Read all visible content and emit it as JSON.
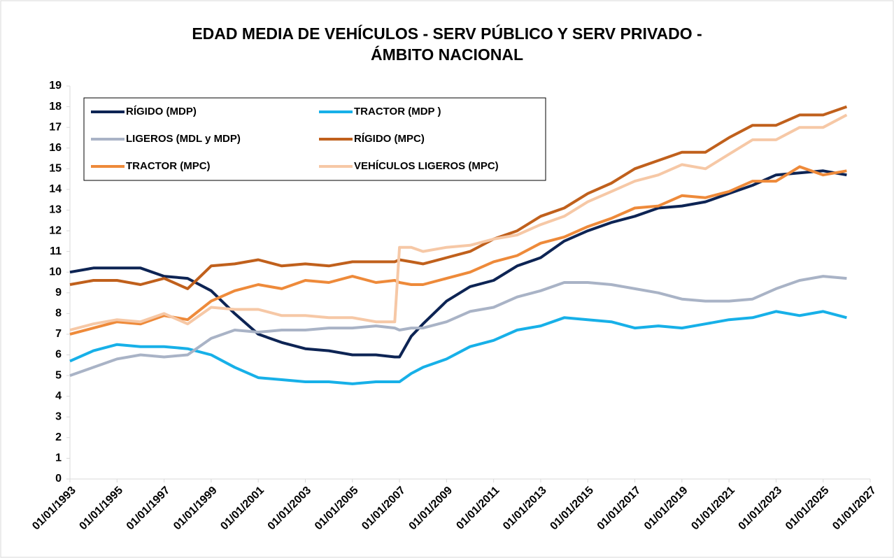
{
  "chart_data": {
    "type": "line",
    "title": [
      "EDAD MEDIA DE VEHÍCULOS - SERV PÚBLICO Y SERV PRIVADO -",
      "ÁMBITO NACIONAL"
    ],
    "x": [
      1993,
      1994,
      1995,
      1996,
      1997,
      1998,
      1999,
      2000,
      2001,
      2002,
      2003,
      2004,
      2005,
      2006,
      2006.8,
      2007,
      2007.5,
      2008,
      2009,
      2010,
      2011,
      2012,
      2013,
      2014,
      2015,
      2016,
      2017,
      2018,
      2019,
      2020,
      2021,
      2022,
      2023,
      2024,
      2025,
      2026
    ],
    "xlim": [
      1993,
      2027
    ],
    "xticks": [
      {
        "value": 1993,
        "label": "01/01/1993"
      },
      {
        "value": 1995,
        "label": "01/01/1995"
      },
      {
        "value": 1997,
        "label": "01/01/1997"
      },
      {
        "value": 1999,
        "label": "01/01/1999"
      },
      {
        "value": 2001,
        "label": "01/01/2001"
      },
      {
        "value": 2003,
        "label": "01/01/2003"
      },
      {
        "value": 2005,
        "label": "01/01/2005"
      },
      {
        "value": 2007,
        "label": "01/01/2007"
      },
      {
        "value": 2009,
        "label": "01/01/2009"
      },
      {
        "value": 2011,
        "label": "01/01/2011"
      },
      {
        "value": 2013,
        "label": "01/01/2013"
      },
      {
        "value": 2015,
        "label": "01/01/2015"
      },
      {
        "value": 2017,
        "label": "01/01/2017"
      },
      {
        "value": 2019,
        "label": "01/01/2019"
      },
      {
        "value": 2021,
        "label": "01/01/2021"
      },
      {
        "value": 2023,
        "label": "01/01/2023"
      },
      {
        "value": 2025,
        "label": "01/01/2025"
      },
      {
        "value": 2027,
        "label": "01/01/2027"
      }
    ],
    "ylim": [
      0,
      19
    ],
    "yticks": [
      0,
      1,
      2,
      3,
      4,
      5,
      6,
      7,
      8,
      9,
      10,
      11,
      12,
      13,
      14,
      15,
      16,
      17,
      18,
      19
    ],
    "grid": false,
    "legend": "top-left",
    "series": [
      {
        "name": "RÍGIDO (MDP)",
        "color": "#0d2454",
        "values": [
          10.0,
          10.2,
          10.2,
          10.2,
          9.8,
          9.7,
          9.1,
          8.0,
          7.0,
          6.6,
          6.3,
          6.2,
          6.0,
          6.0,
          5.9,
          5.9,
          6.9,
          7.5,
          8.6,
          9.3,
          9.6,
          10.3,
          10.7,
          11.5,
          12.0,
          12.4,
          12.7,
          13.1,
          13.2,
          13.4,
          13.8,
          14.2,
          14.7,
          14.8,
          14.9,
          14.7
        ]
      },
      {
        "name": "TRACTOR (MDP )",
        "color": "#17b0e8",
        "values": [
          5.7,
          6.2,
          6.5,
          6.4,
          6.4,
          6.3,
          6.0,
          5.4,
          4.9,
          4.8,
          4.7,
          4.7,
          4.6,
          4.7,
          4.7,
          4.7,
          5.1,
          5.4,
          5.8,
          6.4,
          6.7,
          7.2,
          7.4,
          7.8,
          7.7,
          7.6,
          7.3,
          7.4,
          7.3,
          7.5,
          7.7,
          7.8,
          8.1,
          7.9,
          8.1,
          7.8
        ]
      },
      {
        "name": "LIGEROS (MDL y MDP)",
        "color": "#a9b3c6",
        "values": [
          5.0,
          5.4,
          5.8,
          6.0,
          5.9,
          6.0,
          6.8,
          7.2,
          7.1,
          7.2,
          7.2,
          7.3,
          7.3,
          7.4,
          7.3,
          7.2,
          7.3,
          7.3,
          7.6,
          8.1,
          8.3,
          8.8,
          9.1,
          9.5,
          9.5,
          9.4,
          9.2,
          9.0,
          8.7,
          8.6,
          8.6,
          8.7,
          9.2,
          9.6,
          9.8,
          9.7
        ]
      },
      {
        "name": "RÍGIDO (MPC)",
        "color": "#c0601c",
        "values": [
          9.4,
          9.6,
          9.6,
          9.4,
          9.7,
          9.2,
          10.3,
          10.4,
          10.6,
          10.3,
          10.4,
          10.3,
          10.5,
          10.5,
          10.5,
          10.6,
          10.5,
          10.4,
          10.7,
          11.0,
          11.6,
          12.0,
          12.7,
          13.1,
          13.8,
          14.3,
          15.0,
          15.4,
          15.8,
          15.8,
          16.5,
          17.1,
          17.1,
          17.6,
          17.6,
          18.0
        ]
      },
      {
        "name": "TRACTOR (MPC)",
        "color": "#ee8a3a",
        "values": [
          7.0,
          7.3,
          7.6,
          7.5,
          7.9,
          7.7,
          8.6,
          9.1,
          9.4,
          9.2,
          9.6,
          9.5,
          9.8,
          9.5,
          9.6,
          9.5,
          9.4,
          9.4,
          9.7,
          10.0,
          10.5,
          10.8,
          11.4,
          11.7,
          12.2,
          12.6,
          13.1,
          13.2,
          13.7,
          13.6,
          13.9,
          14.4,
          14.4,
          15.1,
          14.7,
          14.9
        ]
      },
      {
        "name": "VEHÍCULOS LIGEROS (MPC)",
        "color": "#f6c8a6",
        "values": [
          7.2,
          7.5,
          7.7,
          7.6,
          8.0,
          7.5,
          8.3,
          8.2,
          8.2,
          7.9,
          7.9,
          7.8,
          7.8,
          7.6,
          7.6,
          11.2,
          11.2,
          11.0,
          11.2,
          11.3,
          11.6,
          11.8,
          12.3,
          12.7,
          13.4,
          13.9,
          14.4,
          14.7,
          15.2,
          15.0,
          15.7,
          16.4,
          16.4,
          17.0,
          17.0,
          17.6
        ]
      }
    ]
  }
}
